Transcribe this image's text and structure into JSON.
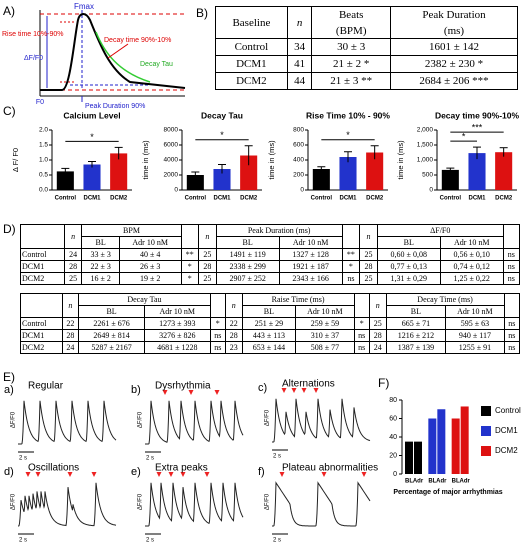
{
  "panel_labels": [
    "A)",
    "B)",
    "C)",
    "D)",
    "E)",
    "F)"
  ],
  "schematic": {
    "fmax": "Fmax",
    "rise": "Rise time 10%-90%",
    "decay": "Decay time 90%-10%",
    "dff": "ΔF/F0",
    "tau": "Decay Tau",
    "f0": "F0",
    "peak": "Peak Duration 90%"
  },
  "table_b": {
    "header": [
      "Baseline",
      "n",
      "Beats",
      "Peak Duration"
    ],
    "units": [
      "(BPM)",
      "(ms)"
    ],
    "rows": [
      [
        "Control",
        34,
        "30 ± 3",
        "1601 ± 142"
      ],
      [
        "DCM1",
        41,
        "21 ± 2  *",
        "2382 ± 230 *"
      ],
      [
        "DCM2",
        44,
        "21 ± 3 **",
        "2684 ± 206 ***"
      ]
    ]
  },
  "table_d": {
    "n": "n",
    "sub": [
      "BL",
      "Adr 10 nM"
    ],
    "blocks": [
      {
        "groups": [
          "BPM",
          "Peak Duration (ms)",
          "ΔF/F0"
        ],
        "rows": [
          [
            "Control",
            24,
            "33 ± 3",
            "40 ± 4",
            "**",
            25,
            "1491 ± 119",
            "1327 ± 128",
            "**",
            25,
            "0,60 ± 0,08",
            "0,56 ± 0,10",
            "ns"
          ],
          [
            "DCM1",
            28,
            "22 ± 3",
            "26 ± 3",
            "*",
            28,
            "2338 ± 299",
            "1921 ± 187",
            "*",
            28,
            "0,77 ± 0,13",
            "0,74 ± 0,12",
            "ns"
          ],
          [
            "DCM2",
            25,
            "16 ± 2",
            "19 ± 2",
            "*",
            25,
            "2907 ± 252",
            "2343 ± 166",
            "ns",
            25,
            "1,31 ± 0,29",
            "1,25 ± 0,22",
            "ns"
          ]
        ]
      },
      {
        "groups": [
          "Decay Tau",
          "Raise Time (ms)",
          "Decay Time (ms)"
        ],
        "rows": [
          [
            "Control",
            22,
            "2261 ± 676",
            "1273 ± 393",
            "*",
            22,
            "251 ± 29",
            "259 ± 59",
            "*",
            25,
            "665 ± 71",
            "595 ± 63",
            "ns"
          ],
          [
            "DCM1",
            28,
            "2649 ± 814",
            "3276 ± 826",
            "ns",
            28,
            "443 ± 113",
            "310 ± 37",
            "ns",
            28,
            "1216 ± 212",
            "940 ± 117",
            "ns"
          ],
          [
            "DCM2",
            24,
            "5287 ± 2167",
            "4681 ± 1228",
            "ns",
            23,
            "653 ± 144",
            "508 ± 77",
            "ns",
            24,
            "1387 ± 139",
            "1255 ± 91",
            "ns"
          ]
        ]
      }
    ]
  },
  "traces": {
    "axis_label": "ΔF/F0",
    "scale": "2 s",
    "panels": [
      {
        "letter": "a)",
        "title": "Regular"
      },
      {
        "letter": "b)",
        "title": "Dysrhythmia"
      },
      {
        "letter": "c)",
        "title": "Alternations"
      },
      {
        "letter": "d)",
        "title": "Oscillations"
      },
      {
        "letter": "e)",
        "title": "Extra peaks"
      },
      {
        "letter": "f)",
        "title": "Plateau abnormalities"
      }
    ]
  },
  "chart_data": [
    {
      "type": "bar",
      "title": "Calcium  Level",
      "ylabel": "Δ F/ F0",
      "categories": [
        "Control",
        "DCM1",
        "DCM2"
      ],
      "values": [
        0.62,
        0.85,
        1.22
      ],
      "errors": [
        0.1,
        0.1,
        0.2
      ],
      "colors": [
        "#000000",
        "#2233cc",
        "#dd1111"
      ],
      "ylim": [
        0,
        2
      ],
      "yticks": [
        {
          "value": 0,
          "label": "0.0"
        },
        0.5,
        {
          "value": 1,
          "label": "1.0"
        },
        1.5,
        {
          "value": 2,
          "label": "2.0"
        }
      ],
      "significance": [
        {
          "label": "*",
          "between": [
            0,
            2
          ]
        }
      ]
    },
    {
      "type": "bar",
      "title": "Decay Tau",
      "ylabel": "time in (ms)",
      "categories": [
        "Control",
        "DCM1",
        "DCM2"
      ],
      "values": [
        2000,
        2800,
        4600
      ],
      "errors": [
        400,
        600,
        1300
      ],
      "colors": [
        "#000000",
        "#2233cc",
        "#dd1111"
      ],
      "ylim": [
        0,
        8000
      ],
      "yticks": [
        0,
        2000,
        4000,
        6000,
        8000
      ],
      "significance": [
        {
          "label": "*",
          "between": [
            0,
            2
          ]
        }
      ]
    },
    {
      "type": "bar",
      "title": "Rise Time 10% - 90%",
      "ylabel": "time in (ms)",
      "categories": [
        "Control",
        "DCM1",
        "DCM2"
      ],
      "values": [
        280,
        440,
        500
      ],
      "errors": [
        30,
        70,
        90
      ],
      "colors": [
        "#000000",
        "#2233cc",
        "#dd1111"
      ],
      "ylim": [
        0,
        800
      ],
      "yticks": [
        0,
        200,
        400,
        600,
        800
      ],
      "significance": [
        {
          "label": "*",
          "between": [
            0,
            2
          ]
        }
      ]
    },
    {
      "type": "bar",
      "title": "Decay time 90%-10%",
      "ylabel": "time in (ms)",
      "categories": [
        "Control",
        "DCM1",
        "DCM2"
      ],
      "values": [
        670,
        1230,
        1260
      ],
      "errors": [
        60,
        200,
        150
      ],
      "colors": [
        "#000000",
        "#2233cc",
        "#dd1111"
      ],
      "ylim": [
        0,
        2000
      ],
      "yticks": [
        0,
        500,
        {
          "value": 1000,
          "label": "1,000"
        },
        {
          "value": 1500,
          "label": "1,500"
        },
        {
          "value": 2000,
          "label": "2,000"
        }
      ],
      "significance": [
        {
          "label": "*",
          "between": [
            0,
            1
          ]
        },
        {
          "label": "***",
          "between": [
            0,
            2
          ]
        }
      ]
    },
    {
      "type": "grouped_bar",
      "xlabel": "Percentage of major arrhythmias",
      "categories": [
        "BL",
        "Adr"
      ],
      "series": [
        {
          "name": "Control",
          "color": "#000000",
          "values": [
            35,
            35
          ]
        },
        {
          "name": "DCM1",
          "color": "#2233cc",
          "values": [
            60,
            70
          ]
        },
        {
          "name": "DCM2",
          "color": "#dd1111",
          "values": [
            60,
            73
          ]
        }
      ],
      "ylim": [
        0,
        80
      ],
      "yticks": [
        0,
        20,
        40,
        60,
        80
      ],
      "legend": "right"
    }
  ]
}
